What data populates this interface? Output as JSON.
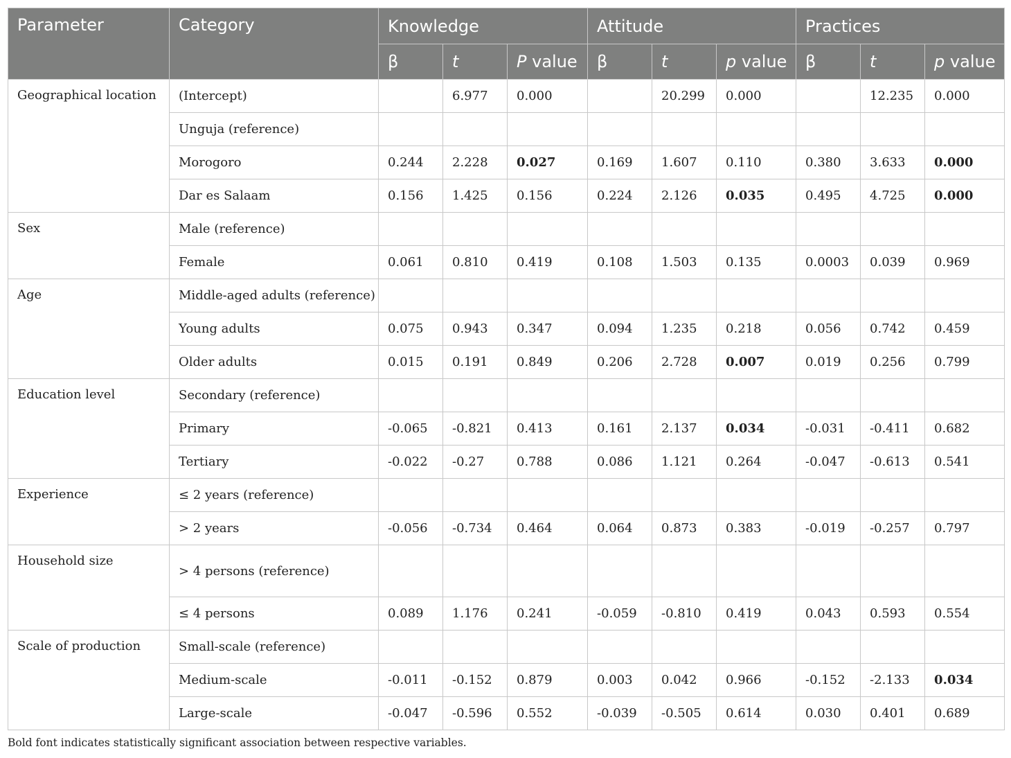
{
  "header": {
    "parameter": "Parameter",
    "category": "Category",
    "groups": [
      "Knowledge",
      "Attitude",
      "Practices"
    ],
    "sub": [
      {
        "beta": "β",
        "t": "t",
        "p_prefix": "P",
        "p_suffix": " value"
      },
      {
        "beta": "β",
        "t": "t",
        "p_prefix": "p",
        "p_suffix": " value"
      },
      {
        "beta": "β",
        "t": "t",
        "p_prefix": "p",
        "p_suffix": " value"
      }
    ]
  },
  "rows": [
    {
      "parameter": "Geographical location",
      "rowspan": 4,
      "category": "(Intercept)",
      "values": [
        "",
        "6.977",
        "0.000",
        "",
        "20.299",
        "0.000",
        "",
        "12.235",
        "0.000"
      ],
      "sig": []
    },
    {
      "category": "Unguja (reference)",
      "values": [
        "",
        "",
        "",
        "",
        "",
        "",
        "",
        "",
        ""
      ],
      "sig": []
    },
    {
      "category": "Morogoro",
      "values": [
        "0.244",
        "2.228",
        "0.027",
        "0.169",
        "1.607",
        "0.110",
        "0.380",
        "3.633",
        "0.000"
      ],
      "sig": [
        2,
        8
      ]
    },
    {
      "category": "Dar es Salaam",
      "values": [
        "0.156",
        "1.425",
        "0.156",
        "0.224",
        "2.126",
        "0.035",
        "0.495",
        "4.725",
        "0.000"
      ],
      "sig": [
        5,
        8
      ]
    },
    {
      "parameter": "Sex",
      "rowspan": 2,
      "category": "Male (reference)",
      "values": [
        "",
        "",
        "",
        "",
        "",
        "",
        "",
        "",
        ""
      ],
      "sig": []
    },
    {
      "category": "Female",
      "values": [
        "0.061",
        "0.810",
        "0.419",
        "0.108",
        "1.503",
        "0.135",
        "0.0003",
        "0.039",
        "0.969"
      ],
      "sig": []
    },
    {
      "parameter": "Age",
      "rowspan": 3,
      "category": "Middle-aged adults (reference)",
      "values": [
        "",
        "",
        "",
        "",
        "",
        "",
        "",
        "",
        ""
      ],
      "sig": [],
      "span_cat": true
    },
    {
      "category": "Young adults",
      "values": [
        "0.075",
        "0.943",
        "0.347",
        "0.094",
        "1.235",
        "0.218",
        "0.056",
        "0.742",
        "0.459"
      ],
      "sig": []
    },
    {
      "category": "Older adults",
      "values": [
        "0.015",
        "0.191",
        "0.849",
        "0.206",
        "2.728",
        "0.007",
        "0.019",
        "0.256",
        "0.799"
      ],
      "sig": [
        5
      ]
    },
    {
      "parameter": "Education level",
      "rowspan": 3,
      "category": "Secondary (reference)",
      "values": [
        "",
        "",
        "",
        "",
        "",
        "",
        "",
        "",
        ""
      ],
      "sig": []
    },
    {
      "category": "Primary",
      "values": [
        "-0.065",
        "-0.821",
        "0.413",
        "0.161",
        "2.137",
        "0.034",
        "-0.031",
        "-0.411",
        "0.682"
      ],
      "sig": [
        5
      ]
    },
    {
      "category": "Tertiary",
      "values": [
        "-0.022",
        "-0.27",
        "0.788",
        "0.086",
        "1.121",
        "0.264",
        "-0.047",
        "-0.613",
        "0.541"
      ],
      "sig": []
    },
    {
      "parameter": "Experience",
      "rowspan": 2,
      "category": "≤ 2 years (reference)",
      "values": [
        "",
        "",
        "",
        "",
        "",
        "",
        "",
        "",
        ""
      ],
      "sig": [],
      "span_cat": true
    },
    {
      "category": "> 2 years",
      "values": [
        "-0.056",
        "-0.734",
        "0.464",
        "0.064",
        "0.873",
        "0.383",
        "-0.019",
        "-0.257",
        "0.797"
      ],
      "sig": []
    },
    {
      "parameter": "Household size",
      "rowspan": 2,
      "category": "> 4 persons (reference)",
      "values": [
        "",
        "",
        "",
        "",
        "",
        "",
        "",
        "",
        ""
      ],
      "sig": [],
      "two_line": true
    },
    {
      "category": "≤ 4 persons",
      "values": [
        "0.089",
        "1.176",
        "0.241",
        "-0.059",
        "-0.810",
        "0.419",
        "0.043",
        "0.593",
        "0.554"
      ],
      "sig": []
    },
    {
      "parameter": "Scale of production",
      "rowspan": 3,
      "category": "Small-scale (reference)",
      "values": [
        "",
        "",
        "",
        "",
        "",
        "",
        "",
        "",
        ""
      ],
      "sig": []
    },
    {
      "category": "Medium-scale",
      "values": [
        "-0.011",
        "-0.152",
        "0.879",
        "0.003",
        "0.042",
        "0.966",
        "-0.152",
        "-2.133",
        "0.034"
      ],
      "sig": [
        8
      ]
    },
    {
      "category": "Large-scale",
      "values": [
        "-0.047",
        "-0.596",
        "0.552",
        "-0.039",
        "-0.505",
        "0.614",
        "0.030",
        "0.401",
        "0.689"
      ],
      "sig": []
    }
  ],
  "footnote": "Bold font indicates statistically significant association between respective variables."
}
